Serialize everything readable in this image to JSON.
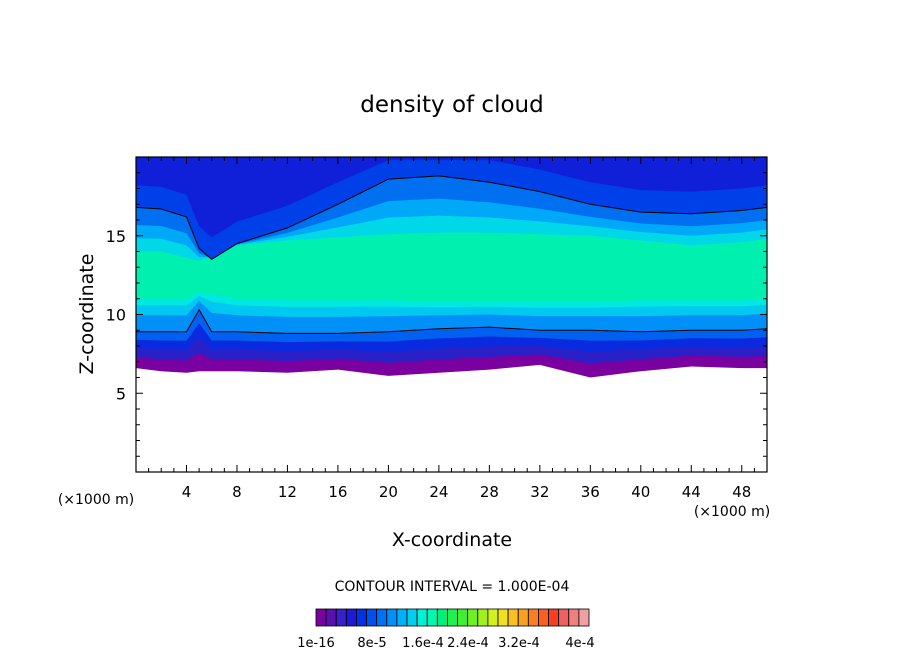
{
  "chart_data": {
    "type": "heatmap",
    "title": "density of cloud",
    "xlabel": "X-coordinate",
    "ylabel": "Z-coordinate",
    "x_unit": "(×1000 m)",
    "z_unit": "(×1000 m)",
    "xlim": [
      0,
      50
    ],
    "ylim": [
      0,
      20
    ],
    "x_ticks": [
      "4",
      "8",
      "12",
      "16",
      "20",
      "24",
      "28",
      "32",
      "36",
      "40",
      "44",
      "48"
    ],
    "y_ticks": [
      "5",
      "10",
      "15"
    ],
    "contour_interval_label": "CONTOUR INTERVAL = 1.000E-04",
    "colorbar": {
      "colors": [
        "#7a00a0",
        "#5a10b0",
        "#3a20c8",
        "#1a1ad8",
        "#0030e8",
        "#0050f0",
        "#0070f5",
        "#0090f8",
        "#00b0f8",
        "#00d0f0",
        "#00f0d8",
        "#00f8b0",
        "#00f080",
        "#20f050",
        "#40f030",
        "#70f020",
        "#a0f020",
        "#d0f020",
        "#f0e020",
        "#f8c020",
        "#f8a020",
        "#f88020",
        "#f86020",
        "#f84020",
        "#f06060",
        "#f08080",
        "#f0a0a0"
      ],
      "labels": [
        "1e-16",
        "8e-5",
        "1.6e-4",
        "2.4e-4",
        "3.2e-4",
        "4e-4"
      ]
    },
    "bands": {
      "x": [
        0,
        2,
        4,
        5,
        6,
        8,
        12,
        16,
        20,
        24,
        28,
        32,
        36,
        40,
        44,
        48,
        50
      ],
      "cloud_base_km": [
        6.6,
        6.4,
        6.3,
        6.4,
        6.4,
        6.4,
        6.3,
        6.5,
        6.1,
        6.3,
        6.5,
        6.8,
        6.0,
        6.4,
        6.7,
        6.6,
        6.6
      ],
      "contour_lower_km": [
        8.9,
        8.9,
        8.9,
        10.3,
        8.9,
        8.9,
        8.8,
        8.8,
        8.9,
        9.1,
        9.2,
        9.0,
        9.0,
        8.9,
        9.0,
        9.0,
        9.1
      ],
      "core_bottom_km": [
        11.0,
        11.0,
        11.0,
        11.4,
        11.3,
        11.0,
        10.9,
        10.9,
        10.9,
        10.8,
        10.8,
        10.8,
        10.8,
        10.9,
        10.9,
        10.9,
        11.0
      ],
      "core_top_km": [
        14.0,
        14.0,
        13.6,
        13.4,
        13.7,
        14.4,
        14.7,
        14.9,
        15.1,
        15.2,
        15.2,
        15.1,
        15.0,
        14.7,
        14.4,
        14.6,
        14.8
      ],
      "contour_upper_km": [
        16.8,
        16.7,
        16.2,
        14.2,
        13.5,
        14.5,
        15.5,
        17.0,
        18.6,
        18.8,
        18.4,
        17.8,
        17.0,
        16.5,
        16.4,
        16.6,
        16.8
      ]
    }
  }
}
